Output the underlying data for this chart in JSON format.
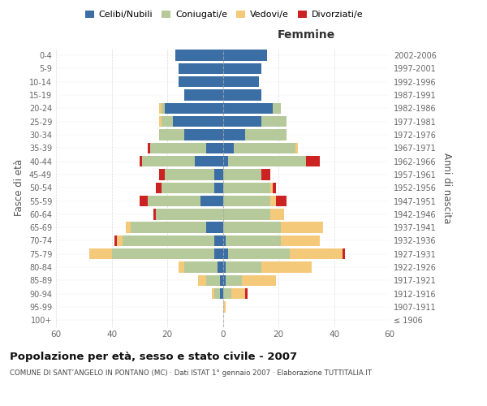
{
  "age_groups": [
    "100+",
    "95-99",
    "90-94",
    "85-89",
    "80-84",
    "75-79",
    "70-74",
    "65-69",
    "60-64",
    "55-59",
    "50-54",
    "45-49",
    "40-44",
    "35-39",
    "30-34",
    "25-29",
    "20-24",
    "15-19",
    "10-14",
    "5-9",
    "0-4"
  ],
  "birth_years": [
    "≤ 1906",
    "1907-1911",
    "1912-1916",
    "1917-1921",
    "1922-1926",
    "1927-1931",
    "1932-1936",
    "1937-1941",
    "1942-1946",
    "1947-1951",
    "1952-1956",
    "1957-1961",
    "1962-1966",
    "1967-1971",
    "1972-1976",
    "1977-1981",
    "1982-1986",
    "1987-1991",
    "1992-1996",
    "1997-2001",
    "2002-2006"
  ],
  "colors": {
    "celibe": "#3a6ea5",
    "coniugato": "#b5c99a",
    "vedovo": "#f5c97a",
    "divorziato": "#cc2222"
  },
  "male": {
    "celibe": [
      0,
      0,
      1,
      1,
      2,
      3,
      3,
      6,
      0,
      8,
      3,
      3,
      10,
      6,
      14,
      18,
      21,
      14,
      16,
      16,
      17
    ],
    "coniugato": [
      0,
      0,
      2,
      5,
      12,
      37,
      33,
      27,
      24,
      19,
      19,
      18,
      19,
      20,
      9,
      4,
      1,
      0,
      0,
      0,
      0
    ],
    "vedovo": [
      0,
      0,
      1,
      3,
      2,
      8,
      2,
      2,
      0,
      0,
      0,
      0,
      0,
      0,
      0,
      1,
      1,
      0,
      0,
      0,
      0
    ],
    "divorziato": [
      0,
      0,
      0,
      0,
      0,
      0,
      1,
      0,
      1,
      3,
      2,
      2,
      1,
      1,
      0,
      0,
      0,
      0,
      0,
      0,
      0
    ]
  },
  "female": {
    "nubile": [
      0,
      0,
      0,
      1,
      1,
      2,
      1,
      0,
      0,
      0,
      0,
      0,
      2,
      4,
      8,
      14,
      18,
      14,
      13,
      14,
      16
    ],
    "coniugata": [
      0,
      0,
      3,
      6,
      13,
      22,
      20,
      21,
      17,
      17,
      17,
      14,
      28,
      22,
      15,
      9,
      3,
      0,
      0,
      0,
      0
    ],
    "vedova": [
      0,
      1,
      5,
      12,
      18,
      19,
      14,
      15,
      5,
      2,
      1,
      0,
      0,
      1,
      0,
      0,
      0,
      0,
      0,
      0,
      0
    ],
    "divorziata": [
      0,
      0,
      1,
      0,
      0,
      1,
      0,
      0,
      0,
      4,
      1,
      3,
      5,
      0,
      0,
      0,
      0,
      0,
      0,
      0,
      0
    ]
  },
  "xlim": 60,
  "title": "Popolazione per età, sesso e stato civile - 2007",
  "subtitle": "COMUNE DI SANT’ANGELO IN PONTANO (MC) · Dati ISTAT 1° gennaio 2007 · Elaborazione TUTTITALIA.IT",
  "ylabel_left": "Fasce di età",
  "ylabel_right": "Anni di nascita",
  "background_color": "#ffffff",
  "bar_height": 0.82
}
